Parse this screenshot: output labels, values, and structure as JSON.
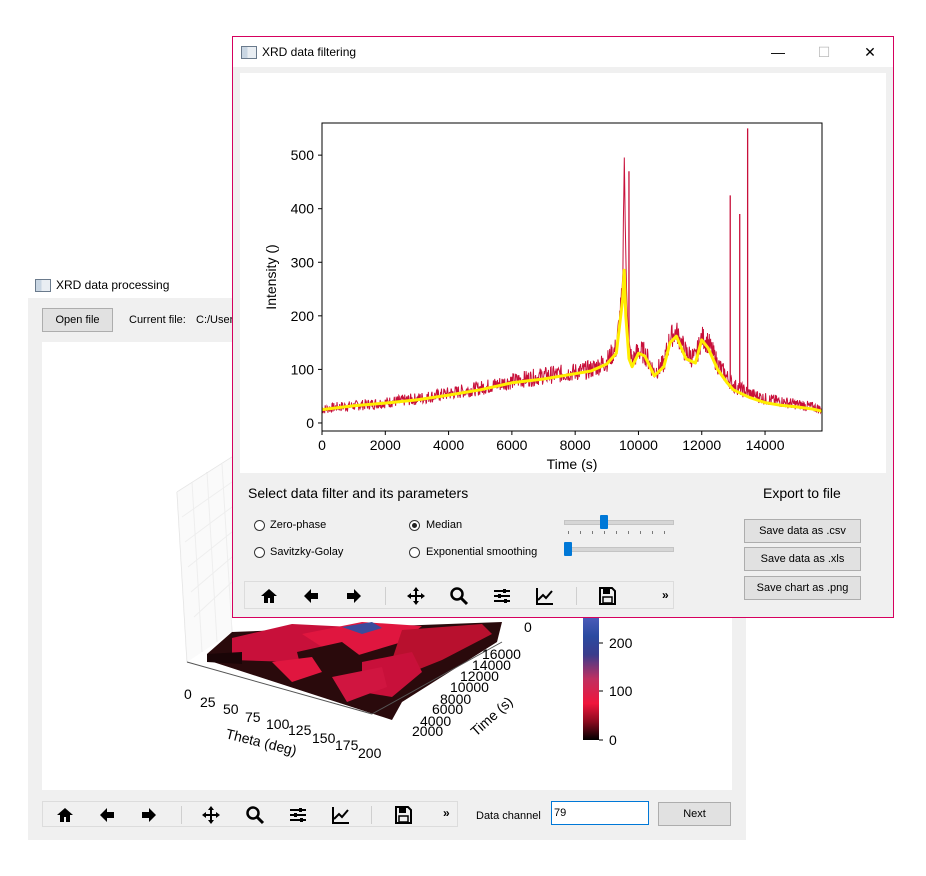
{
  "back_window": {
    "title": "XRD data processing",
    "open_file_label": "Open file",
    "current_file_label": "Current file:",
    "current_file_value": "C:/User",
    "data_channel_label": "Data channel",
    "data_channel_value": "79",
    "next_label": "Next",
    "plot3d": {
      "x_axis_label": "Theta (deg)",
      "x_ticks": [
        "0",
        "25",
        "50",
        "75",
        "100",
        "125",
        "150",
        "175",
        "200"
      ],
      "y_axis_label": "Time (s)",
      "y_ticks": [
        "0",
        "2000",
        "4000",
        "6000",
        "8000",
        "10000",
        "12000",
        "14000",
        "16000"
      ],
      "colorbar_ticks": [
        "0",
        "100",
        "200"
      ]
    },
    "toolbar": [
      "home-icon",
      "back-arrow-icon",
      "forward-arrow-icon",
      "pan-icon",
      "zoom-icon",
      "configure-subplots-icon",
      "edit-axis-icon",
      "save-icon"
    ]
  },
  "front_window": {
    "title": "XRD data filtering",
    "filter_section_title": "Select data filter and its parameters",
    "export_section_title": "Export to file",
    "filters": [
      {
        "label": "Zero-phase",
        "checked": false
      },
      {
        "label": "Median",
        "checked": true
      },
      {
        "label": "Savitzky-Golay",
        "checked": false
      },
      {
        "label": "Exponential smoothing",
        "checked": false
      }
    ],
    "sliders": [
      {
        "name": "median-window-slider",
        "value": 0.33
      },
      {
        "name": "smoothing-slider",
        "value": 0.0
      }
    ],
    "export_buttons": [
      "Save data as .csv",
      "Save data as .xls",
      "Save chart as .png"
    ],
    "toolbar": [
      "home-icon",
      "back-arrow-icon",
      "forward-arrow-icon",
      "pan-icon",
      "zoom-icon",
      "configure-subplots-icon",
      "edit-axis-icon",
      "save-icon"
    ],
    "colors": {
      "raw": "#c8103a",
      "filtered": "#ffee00",
      "accent": "#0078d7",
      "window_border": "#d6005e"
    }
  },
  "chart_data": {
    "type": "line",
    "title": "",
    "xlabel": "Time (s)",
    "ylabel": "Intensity ()",
    "xlim": [
      0,
      15800
    ],
    "ylim": [
      -15,
      560
    ],
    "xticks": [
      0,
      2000,
      4000,
      6000,
      8000,
      10000,
      12000,
      14000
    ],
    "yticks": [
      0,
      100,
      200,
      300,
      400,
      500
    ],
    "series": [
      {
        "role": "raw",
        "color": "#c8103a",
        "x": [
          0,
          500,
          1000,
          1500,
          2000,
          3000,
          4000,
          5000,
          6000,
          7000,
          8000,
          8500,
          9000,
          9300,
          9500,
          9550,
          9600,
          9700,
          9800,
          10000,
          10200,
          10500,
          10800,
          11000,
          11200,
          11500,
          11800,
          12000,
          12200,
          12500,
          12800,
          13000,
          13500,
          14000,
          14500,
          15000,
          15500,
          15800
        ],
        "y": [
          25,
          30,
          32,
          35,
          38,
          45,
          55,
          65,
          78,
          88,
          95,
          100,
          115,
          140,
          250,
          510,
          300,
          140,
          115,
          135,
          130,
          95,
          110,
          160,
          170,
          130,
          120,
          160,
          150,
          110,
          85,
          70,
          55,
          45,
          40,
          35,
          30,
          25
        ]
      },
      {
        "role": "filtered",
        "color": "#ffee00",
        "x": [
          0,
          1000,
          2000,
          3000,
          4000,
          5000,
          6000,
          7000,
          8000,
          8500,
          9000,
          9300,
          9500,
          9550,
          9600,
          9700,
          9800,
          10000,
          10200,
          10500,
          10800,
          11000,
          11200,
          11500,
          11800,
          12000,
          12200,
          12500,
          12800,
          13000,
          13500,
          14000,
          14500,
          15000,
          15500,
          15800
        ],
        "y": [
          25,
          32,
          37,
          43,
          52,
          62,
          75,
          82,
          92,
          97,
          110,
          130,
          230,
          285,
          200,
          120,
          105,
          130,
          125,
          88,
          105,
          150,
          162,
          120,
          112,
          155,
          140,
          100,
          75,
          62,
          48,
          38,
          33,
          30,
          26,
          22
        ]
      }
    ],
    "spikes": [
      {
        "x": 9550,
        "y": 510
      },
      {
        "x": 9700,
        "y": 470
      },
      {
        "x": 12900,
        "y": 425
      },
      {
        "x": 13200,
        "y": 390
      },
      {
        "x": 13450,
        "y": 550
      }
    ]
  }
}
